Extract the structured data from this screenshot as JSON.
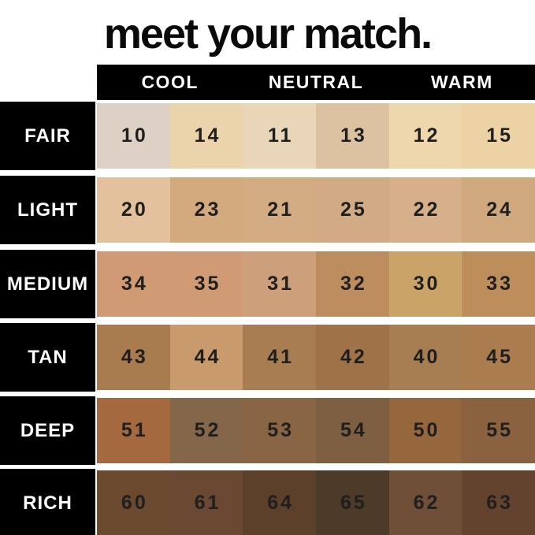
{
  "title": "meet your match.",
  "columns": [
    "COOL",
    "NEUTRAL",
    "WARM"
  ],
  "palette": {
    "background": "#ffffff",
    "bar_background": "#000000",
    "header_text": "#ffffff",
    "title_text": "#0a0a0a",
    "number_text": "#1f1f1f"
  },
  "rows": [
    {
      "label": "FAIR",
      "shades": [
        {
          "num": "10",
          "color": "#ddd0c5"
        },
        {
          "num": "14",
          "color": "#ebd3ac"
        },
        {
          "num": "11",
          "color": "#e9d5b8"
        },
        {
          "num": "13",
          "color": "#dcc2a1"
        },
        {
          "num": "12",
          "color": "#eed6ad"
        },
        {
          "num": "15",
          "color": "#ecd2a4"
        }
      ]
    },
    {
      "label": "LIGHT",
      "shades": [
        {
          "num": "20",
          "color": "#e3c19c"
        },
        {
          "num": "23",
          "color": "#d3a97e"
        },
        {
          "num": "21",
          "color": "#d3ac84"
        },
        {
          "num": "25",
          "color": "#d1ab86"
        },
        {
          "num": "22",
          "color": "#d5b08a"
        },
        {
          "num": "24",
          "color": "#cfa87e"
        }
      ]
    },
    {
      "label": "MEDIUM",
      "shades": [
        {
          "num": "34",
          "color": "#cf9a74"
        },
        {
          "num": "35",
          "color": "#d09a75"
        },
        {
          "num": "31",
          "color": "#cd9f7b"
        },
        {
          "num": "32",
          "color": "#be8d5f"
        },
        {
          "num": "30",
          "color": "#caa368"
        },
        {
          "num": "33",
          "color": "#bd8d5c"
        }
      ]
    },
    {
      "label": "TAN",
      "shades": [
        {
          "num": "43",
          "color": "#a97c50"
        },
        {
          "num": "44",
          "color": "#c89a6c"
        },
        {
          "num": "41",
          "color": "#a87d51"
        },
        {
          "num": "42",
          "color": "#9f7248"
        },
        {
          "num": "40",
          "color": "#a67e52"
        },
        {
          "num": "45",
          "color": "#aa7c4e"
        }
      ]
    },
    {
      "label": "DEEP",
      "shades": [
        {
          "num": "51",
          "color": "#a56940"
        },
        {
          "num": "52",
          "color": "#84664a"
        },
        {
          "num": "53",
          "color": "#8a6543"
        },
        {
          "num": "54",
          "color": "#7e5f42"
        },
        {
          "num": "50",
          "color": "#96663c"
        },
        {
          "num": "55",
          "color": "#8a6240"
        }
      ]
    },
    {
      "label": "RICH",
      "shades": [
        {
          "num": "60",
          "color": "#6b4a30"
        },
        {
          "num": "61",
          "color": "#6b4832"
        },
        {
          "num": "64",
          "color": "#5d4029"
        },
        {
          "num": "65",
          "color": "#4e3a28"
        },
        {
          "num": "62",
          "color": "#6f4f38"
        },
        {
          "num": "63",
          "color": "#63432e"
        }
      ]
    }
  ],
  "chart_data": {
    "type": "table",
    "title": "meet your match.",
    "column_groups": [
      "COOL",
      "NEUTRAL",
      "WARM"
    ],
    "columns_per_group": 2,
    "row_categories": [
      "FAIR",
      "LIGHT",
      "MEDIUM",
      "TAN",
      "DEEP",
      "RICH"
    ],
    "cells": [
      {
        "row": "FAIR",
        "values": [
          "10",
          "14",
          "11",
          "13",
          "12",
          "15"
        ],
        "colors": [
          "#ddd0c5",
          "#ebd3ac",
          "#e9d5b8",
          "#dcc2a1",
          "#eed6ad",
          "#ecd2a4"
        ]
      },
      {
        "row": "LIGHT",
        "values": [
          "20",
          "23",
          "21",
          "25",
          "22",
          "24"
        ],
        "colors": [
          "#e3c19c",
          "#d3a97e",
          "#d3ac84",
          "#d1ab86",
          "#d5b08a",
          "#cfa87e"
        ]
      },
      {
        "row": "MEDIUM",
        "values": [
          "34",
          "35",
          "31",
          "32",
          "30",
          "33"
        ],
        "colors": [
          "#cf9a74",
          "#d09a75",
          "#cd9f7b",
          "#be8d5f",
          "#caa368",
          "#bd8d5c"
        ]
      },
      {
        "row": "TAN",
        "values": [
          "43",
          "44",
          "41",
          "42",
          "40",
          "45"
        ],
        "colors": [
          "#a97c50",
          "#c89a6c",
          "#a87d51",
          "#9f7248",
          "#a67e52",
          "#aa7c4e"
        ]
      },
      {
        "row": "DEEP",
        "values": [
          "51",
          "52",
          "53",
          "54",
          "50",
          "55"
        ],
        "colors": [
          "#a56940",
          "#84664a",
          "#8a6543",
          "#7e5f42",
          "#96663c",
          "#8a6240"
        ]
      },
      {
        "row": "RICH",
        "values": [
          "60",
          "61",
          "64",
          "65",
          "62",
          "63"
        ],
        "colors": [
          "#6b4a30",
          "#6b4832",
          "#5d4029",
          "#4e3a28",
          "#6f4f38",
          "#63432e"
        ]
      }
    ],
    "legend_position": "none",
    "grid": false
  }
}
